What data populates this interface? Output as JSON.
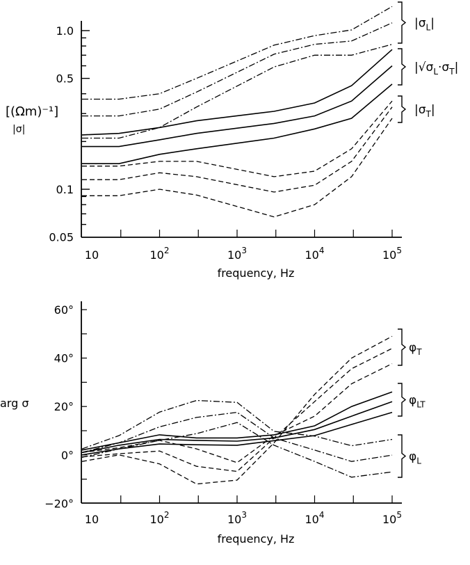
{
  "colors": {
    "line": "#000000",
    "background": "#ffffff"
  },
  "chart_data": [
    {
      "type": "line",
      "x_scale": "log",
      "y_scale": "log",
      "xlabel": "frequency,  Hz",
      "ylabel_unit": "[(Ωm)⁻¹]",
      "ylabel": "|σ|",
      "xlim": [
        10,
        100000
      ],
      "ylim": [
        0.05,
        1.4
      ],
      "x_ticks": [
        {
          "base": "10",
          "exp": ""
        },
        {
          "base": "10",
          "exp": "2"
        },
        {
          "base": "10",
          "exp": "3"
        },
        {
          "base": "10",
          "exp": "4"
        },
        {
          "base": "10",
          "exp": "5"
        }
      ],
      "x_tick_values": [
        10,
        100,
        1000,
        10000,
        100000
      ],
      "y_ticks": [
        "1.0",
        "0.5",
        "0.1",
        "0.05"
      ],
      "y_tick_values": [
        1.0,
        0.5,
        0.1,
        0.05
      ],
      "x": [
        10,
        30,
        100,
        300,
        3000,
        10000,
        30000,
        100000
      ],
      "groups": [
        {
          "label": {
            "pre": "|σ",
            "sub": "L",
            "post": "|"
          },
          "style": "dashdot",
          "series": [
            [
              0.37,
              0.37,
              0.4,
              0.5,
              0.81,
              0.93,
              1.01,
              1.42
            ],
            [
              0.29,
              0.29,
              0.32,
              0.41,
              0.71,
              0.82,
              0.86,
              1.12
            ],
            [
              0.21,
              0.21,
              0.245,
              0.33,
              0.59,
              0.7,
              0.7,
              0.82
            ]
          ]
        },
        {
          "label": {
            "pre": "|√σ",
            "sub": "L",
            "mid": "·σ",
            "sub2": "T",
            "post": "|"
          },
          "style": "solid",
          "series": [
            [
              0.22,
              0.225,
              0.245,
              0.27,
              0.31,
              0.35,
              0.45,
              0.76
            ],
            [
              0.186,
              0.186,
              0.205,
              0.225,
              0.26,
              0.29,
              0.36,
              0.6
            ],
            [
              0.145,
              0.145,
              0.166,
              0.18,
              0.21,
              0.24,
              0.28,
              0.46
            ]
          ]
        },
        {
          "label": {
            "pre": "|σ",
            "sub": "T",
            "post": "|"
          },
          "style": "dashed",
          "series": [
            [
              0.14,
              0.14,
              0.15,
              0.15,
              0.12,
              0.13,
              0.18,
              0.36
            ],
            [
              0.115,
              0.115,
              0.127,
              0.12,
              0.096,
              0.106,
              0.15,
              0.33
            ],
            [
              0.091,
              0.091,
              0.1,
              0.092,
              0.067,
              0.08,
              0.12,
              0.28
            ]
          ]
        }
      ]
    },
    {
      "type": "line",
      "x_scale": "log",
      "xlabel": "frequency,  Hz",
      "ylabel": "arg σ",
      "xlim": [
        10,
        100000
      ],
      "ylim": [
        -20,
        60
      ],
      "x_ticks": [
        {
          "base": "10",
          "exp": ""
        },
        {
          "base": "10",
          "exp": "2"
        },
        {
          "base": "10",
          "exp": "3"
        },
        {
          "base": "10",
          "exp": "4"
        },
        {
          "base": "10",
          "exp": "5"
        }
      ],
      "x_tick_values": [
        10,
        100,
        1000,
        10000,
        100000
      ],
      "y_ticks": [
        "60°",
        "40°",
        "20°",
        "0°",
        "−20°"
      ],
      "y_tick_values": [
        60,
        40,
        20,
        0,
        -20
      ],
      "x": [
        10,
        30,
        100,
        300,
        1000,
        3000,
        10000,
        30000,
        100000
      ],
      "groups": [
        {
          "label": {
            "pre": "φ",
            "sub": "T",
            "post": ""
          },
          "style": "dashed",
          "series": [
            [
              -2.7,
              0,
              -3.7,
              -12,
              -10.4,
              5,
              25,
              40,
              49
            ],
            [
              -0.8,
              0.5,
              1.6,
              -4.7,
              -6.8,
              7,
              22,
              35.6,
              44
            ],
            [
              1,
              3,
              6,
              2.5,
              -3.2,
              8,
              16,
              29.4,
              37.7
            ]
          ]
        },
        {
          "label": {
            "pre": "φ",
            "sub": "LT",
            "post": ""
          },
          "style": "solid",
          "series": [
            [
              2,
              5,
              8.3,
              7,
              7,
              8.3,
              12,
              20,
              26
            ],
            [
              1,
              4,
              6.4,
              6,
              5.7,
              7,
              10.5,
              16,
              22
            ],
            [
              0,
              2.5,
              4.5,
              4.2,
              4,
              5.9,
              8,
              12.6,
              17.6
            ]
          ]
        },
        {
          "label": {
            "pre": "φ",
            "sub": "L",
            "post": ""
          },
          "style": "dashdot",
          "series": [
            [
              2.5,
              8,
              17.7,
              22.5,
              21.7,
              9.7,
              7.8,
              3.8,
              6.4
            ],
            [
              1,
              5,
              11.6,
              15.5,
              17.6,
              7,
              2,
              -2.7,
              -0.1
            ],
            [
              -1,
              2.5,
              6,
              8.8,
              13.4,
              4,
              -2.7,
              -9.2,
              -7
            ]
          ]
        }
      ]
    }
  ]
}
